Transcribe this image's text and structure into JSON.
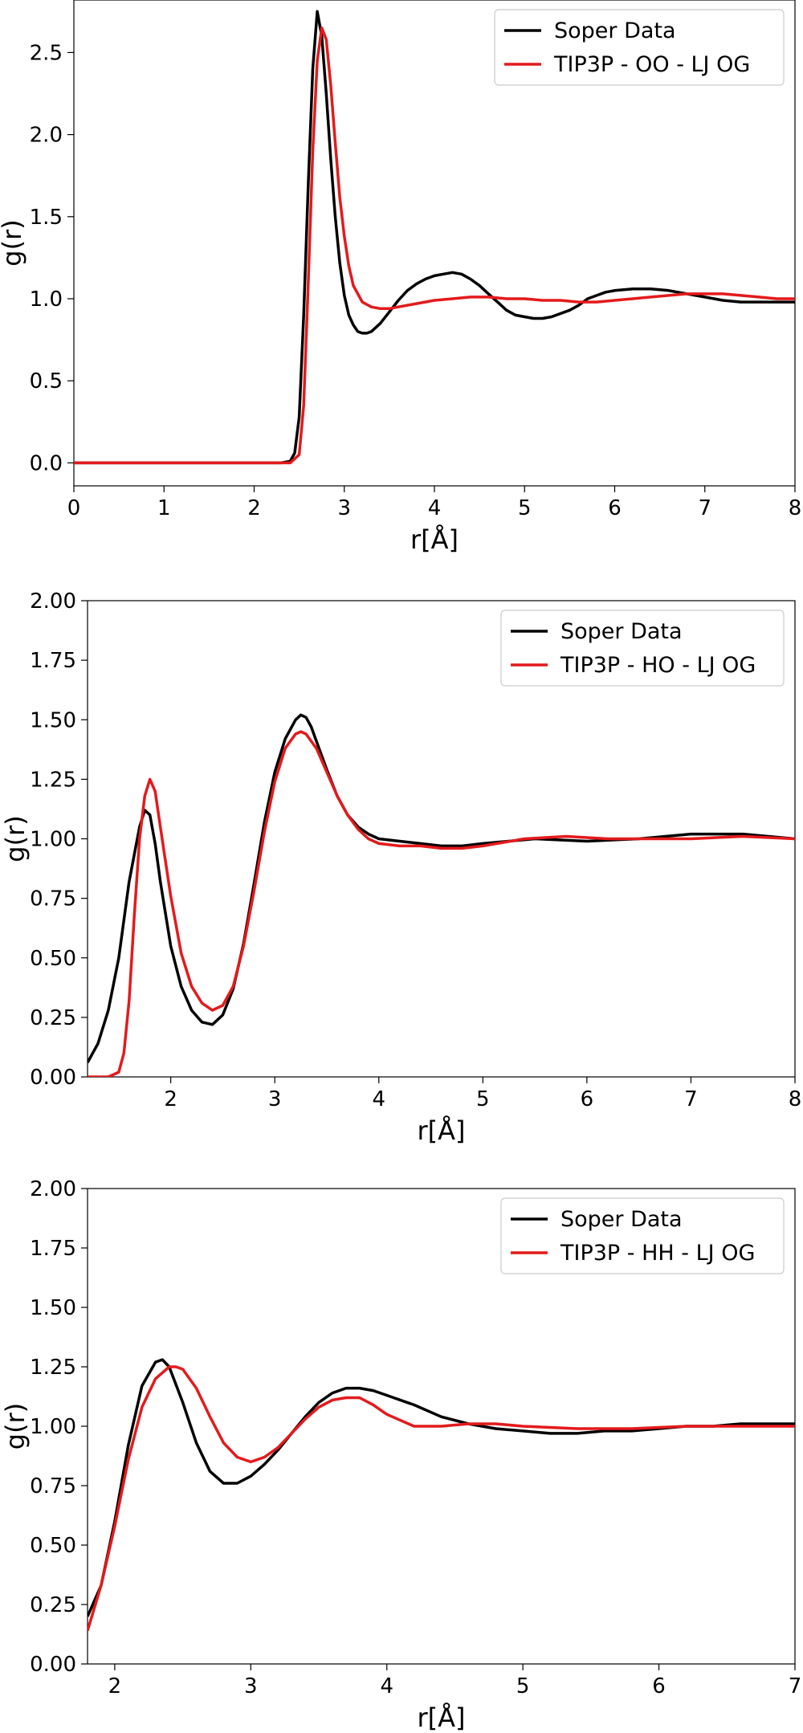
{
  "chart_data": [
    {
      "type": "line",
      "title": "",
      "xlabel": "r[Å]",
      "ylabel": "g(r)",
      "xlim": [
        0,
        8
      ],
      "ylim": [
        -0.14,
        2.82
      ],
      "xticks": [
        0,
        1,
        2,
        3,
        4,
        5,
        6,
        7,
        8
      ],
      "yticks": [
        0.0,
        0.5,
        1.0,
        1.5,
        2.0,
        2.5
      ],
      "ytick_labels": [
        "0.0",
        "0.5",
        "1.0",
        "1.5",
        "2.0",
        "2.5"
      ],
      "grid": false,
      "legend_position": "top-right",
      "series": [
        {
          "name": "Soper Data",
          "color": "#000000",
          "x": [
            0,
            2.3,
            2.4,
            2.45,
            2.5,
            2.55,
            2.6,
            2.65,
            2.7,
            2.75,
            2.8,
            2.85,
            2.9,
            2.95,
            3.0,
            3.05,
            3.1,
            3.15,
            3.2,
            3.25,
            3.3,
            3.4,
            3.5,
            3.6,
            3.7,
            3.8,
            3.9,
            4.0,
            4.1,
            4.2,
            4.3,
            4.4,
            4.5,
            4.6,
            4.7,
            4.8,
            4.9,
            5.0,
            5.1,
            5.2,
            5.3,
            5.4,
            5.5,
            5.6,
            5.7,
            5.8,
            5.9,
            6.0,
            6.2,
            6.4,
            6.6,
            6.8,
            7.0,
            7.2,
            7.4,
            7.6,
            7.8,
            8.0
          ],
          "y": [
            0.0,
            0.0,
            0.01,
            0.06,
            0.28,
            0.9,
            1.7,
            2.4,
            2.75,
            2.6,
            2.25,
            1.85,
            1.5,
            1.22,
            1.02,
            0.9,
            0.84,
            0.8,
            0.79,
            0.79,
            0.8,
            0.85,
            0.92,
            0.99,
            1.05,
            1.09,
            1.12,
            1.14,
            1.15,
            1.16,
            1.15,
            1.12,
            1.08,
            1.03,
            0.98,
            0.93,
            0.9,
            0.89,
            0.88,
            0.88,
            0.89,
            0.91,
            0.93,
            0.96,
            1.0,
            1.02,
            1.04,
            1.05,
            1.06,
            1.06,
            1.05,
            1.03,
            1.01,
            0.99,
            0.98,
            0.98,
            0.98,
            0.98
          ]
        },
        {
          "name": "TIP3P - OO - LJ OG",
          "color": "#e41a1c",
          "x": [
            0,
            2.3,
            2.4,
            2.5,
            2.55,
            2.6,
            2.65,
            2.7,
            2.75,
            2.8,
            2.85,
            2.9,
            2.95,
            3.0,
            3.05,
            3.1,
            3.2,
            3.3,
            3.4,
            3.5,
            3.6,
            3.8,
            4.0,
            4.2,
            4.4,
            4.6,
            4.8,
            5.0,
            5.2,
            5.4,
            5.6,
            5.8,
            6.0,
            6.2,
            6.4,
            6.6,
            6.8,
            7.0,
            7.2,
            7.4,
            7.6,
            7.8,
            8.0
          ],
          "y": [
            0.0,
            0.0,
            0.0,
            0.05,
            0.35,
            1.1,
            1.9,
            2.45,
            2.65,
            2.58,
            2.3,
            1.95,
            1.62,
            1.38,
            1.2,
            1.08,
            0.98,
            0.95,
            0.94,
            0.94,
            0.95,
            0.97,
            0.99,
            1.0,
            1.01,
            1.01,
            1.0,
            1.0,
            0.99,
            0.99,
            0.98,
            0.98,
            0.99,
            1.0,
            1.01,
            1.02,
            1.03,
            1.03,
            1.03,
            1.02,
            1.01,
            1.0,
            1.0
          ]
        }
      ]
    },
    {
      "type": "line",
      "title": "",
      "xlabel": "r[Å]",
      "ylabel": "g(r)",
      "xlim": [
        1.2,
        8
      ],
      "ylim": [
        0.0,
        2.0
      ],
      "xticks": [
        2,
        3,
        4,
        5,
        6,
        7,
        8
      ],
      "yticks": [
        0.0,
        0.25,
        0.5,
        0.75,
        1.0,
        1.25,
        1.5,
        1.75,
        2.0
      ],
      "ytick_labels": [
        "0.00",
        "0.25",
        "0.50",
        "0.75",
        "1.00",
        "1.25",
        "1.50",
        "1.75",
        "2.00"
      ],
      "grid": false,
      "legend_position": "top-right",
      "series": [
        {
          "name": "Soper Data",
          "color": "#000000",
          "x": [
            1.2,
            1.3,
            1.4,
            1.5,
            1.6,
            1.7,
            1.75,
            1.8,
            1.85,
            1.9,
            2.0,
            2.1,
            2.2,
            2.3,
            2.4,
            2.5,
            2.6,
            2.7,
            2.8,
            2.9,
            3.0,
            3.1,
            3.2,
            3.25,
            3.3,
            3.35,
            3.4,
            3.5,
            3.6,
            3.7,
            3.8,
            3.9,
            4.0,
            4.2,
            4.4,
            4.6,
            4.8,
            5.0,
            5.5,
            6.0,
            6.5,
            7.0,
            7.5,
            8.0
          ],
          "y": [
            0.06,
            0.14,
            0.28,
            0.5,
            0.82,
            1.05,
            1.12,
            1.1,
            0.98,
            0.82,
            0.55,
            0.38,
            0.28,
            0.23,
            0.22,
            0.26,
            0.37,
            0.56,
            0.81,
            1.07,
            1.28,
            1.42,
            1.5,
            1.52,
            1.51,
            1.47,
            1.41,
            1.29,
            1.18,
            1.1,
            1.05,
            1.02,
            1.0,
            0.99,
            0.98,
            0.97,
            0.97,
            0.98,
            1.0,
            0.99,
            1.0,
            1.02,
            1.02,
            1.0
          ]
        },
        {
          "name": "TIP3P - HO - LJ OG",
          "color": "#e41a1c",
          "x": [
            1.2,
            1.4,
            1.5,
            1.55,
            1.6,
            1.65,
            1.7,
            1.75,
            1.8,
            1.85,
            1.9,
            2.0,
            2.1,
            2.2,
            2.3,
            2.4,
            2.5,
            2.6,
            2.7,
            2.8,
            2.9,
            3.0,
            3.1,
            3.2,
            3.25,
            3.3,
            3.4,
            3.5,
            3.6,
            3.7,
            3.8,
            3.9,
            4.0,
            4.2,
            4.4,
            4.6,
            4.8,
            5.0,
            5.4,
            5.8,
            6.2,
            6.6,
            7.0,
            7.5,
            8.0
          ],
          "y": [
            0.0,
            0.0,
            0.02,
            0.1,
            0.32,
            0.68,
            1.0,
            1.18,
            1.25,
            1.2,
            1.05,
            0.76,
            0.52,
            0.38,
            0.31,
            0.28,
            0.3,
            0.38,
            0.55,
            0.78,
            1.03,
            1.24,
            1.38,
            1.44,
            1.45,
            1.44,
            1.38,
            1.28,
            1.18,
            1.1,
            1.04,
            1.0,
            0.98,
            0.97,
            0.97,
            0.96,
            0.96,
            0.97,
            1.0,
            1.01,
            1.0,
            1.0,
            1.0,
            1.01,
            1.0
          ]
        }
      ]
    },
    {
      "type": "line",
      "title": "",
      "xlabel": "r[Å]",
      "ylabel": "g(r)",
      "xlim": [
        1.8,
        7
      ],
      "ylim": [
        0.0,
        2.0
      ],
      "xticks": [
        2,
        3,
        4,
        5,
        6,
        7
      ],
      "yticks": [
        0.0,
        0.25,
        0.5,
        0.75,
        1.0,
        1.25,
        1.5,
        1.75,
        2.0
      ],
      "ytick_labels": [
        "0.00",
        "0.25",
        "0.50",
        "0.75",
        "1.00",
        "1.25",
        "1.50",
        "1.75",
        "2.00"
      ],
      "grid": false,
      "legend_position": "top-right",
      "series": [
        {
          "name": "Soper Data",
          "color": "#000000",
          "x": [
            1.8,
            1.9,
            2.0,
            2.1,
            2.2,
            2.3,
            2.35,
            2.4,
            2.5,
            2.6,
            2.7,
            2.8,
            2.9,
            3.0,
            3.1,
            3.2,
            3.3,
            3.4,
            3.5,
            3.6,
            3.7,
            3.8,
            3.9,
            4.0,
            4.2,
            4.4,
            4.6,
            4.8,
            5.0,
            5.2,
            5.4,
            5.6,
            5.8,
            6.0,
            6.2,
            6.4,
            6.6,
            6.8,
            7.0
          ],
          "y": [
            0.2,
            0.33,
            0.6,
            0.92,
            1.17,
            1.27,
            1.28,
            1.25,
            1.1,
            0.93,
            0.81,
            0.76,
            0.76,
            0.79,
            0.84,
            0.9,
            0.97,
            1.04,
            1.1,
            1.14,
            1.16,
            1.16,
            1.15,
            1.13,
            1.09,
            1.04,
            1.01,
            0.99,
            0.98,
            0.97,
            0.97,
            0.98,
            0.98,
            0.99,
            1.0,
            1.0,
            1.01,
            1.01,
            1.01
          ]
        },
        {
          "name": "TIP3P - HH - LJ OG",
          "color": "#e41a1c",
          "x": [
            1.8,
            1.9,
            2.0,
            2.1,
            2.2,
            2.3,
            2.4,
            2.45,
            2.5,
            2.6,
            2.7,
            2.8,
            2.9,
            3.0,
            3.1,
            3.2,
            3.3,
            3.4,
            3.5,
            3.6,
            3.7,
            3.8,
            3.9,
            4.0,
            4.2,
            4.4,
            4.6,
            4.8,
            5.0,
            5.4,
            5.8,
            6.2,
            6.6,
            7.0
          ],
          "y": [
            0.14,
            0.33,
            0.58,
            0.86,
            1.08,
            1.2,
            1.25,
            1.25,
            1.24,
            1.16,
            1.04,
            0.93,
            0.87,
            0.85,
            0.87,
            0.91,
            0.97,
            1.03,
            1.08,
            1.11,
            1.12,
            1.12,
            1.09,
            1.05,
            1.0,
            1.0,
            1.01,
            1.01,
            1.0,
            0.99,
            0.99,
            1.0,
            1.0,
            1.0
          ]
        }
      ]
    }
  ]
}
